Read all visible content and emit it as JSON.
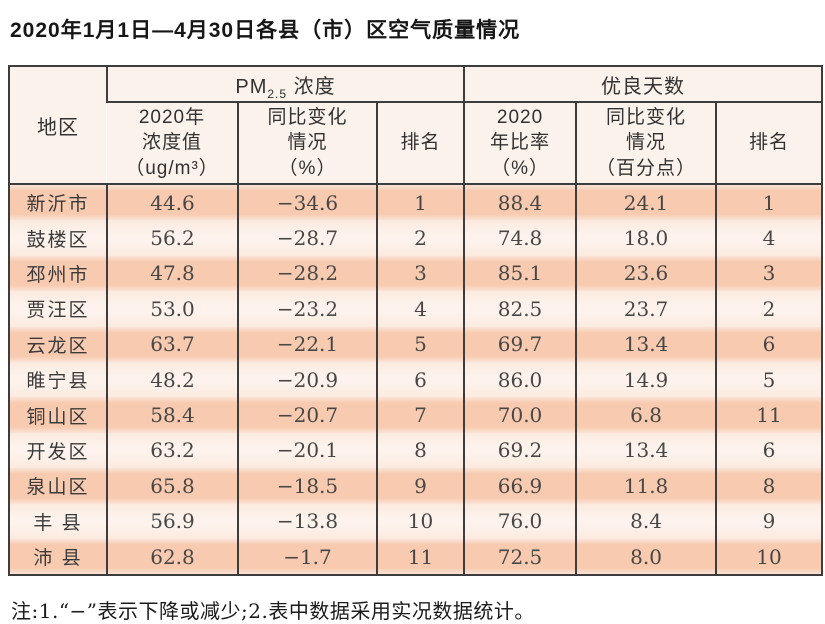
{
  "title": "2020年1月1日—4月30日各县（市）区空气质量情况",
  "table": {
    "corner_header": "地区",
    "group_pm": {
      "prefix": "PM",
      "sub": "2.5",
      "suffix": " 浓度"
    },
    "group_good_days": "优良天数",
    "subheaders": [
      {
        "lines": [
          "2020年",
          "浓度值",
          "（ug/m³）"
        ]
      },
      {
        "lines": [
          "同比变化",
          "情况",
          "（%）"
        ]
      },
      {
        "lines": [
          "排名"
        ]
      },
      {
        "lines": [
          "2020",
          "年比率",
          "（%）"
        ]
      },
      {
        "lines": [
          "同比变化",
          "情况",
          "（百分点）"
        ]
      },
      {
        "lines": [
          "排名"
        ]
      }
    ],
    "rows": [
      {
        "region": "新沂市",
        "pm_value": "44.6",
        "pm_change": "−34.6",
        "pm_rank": "1",
        "good_rate": "88.4",
        "good_change": "24.1",
        "good_rank": "1"
      },
      {
        "region": "鼓楼区",
        "pm_value": "56.2",
        "pm_change": "−28.7",
        "pm_rank": "2",
        "good_rate": "74.8",
        "good_change": "18.0",
        "good_rank": "4"
      },
      {
        "region": "邳州市",
        "pm_value": "47.8",
        "pm_change": "−28.2",
        "pm_rank": "3",
        "good_rate": "85.1",
        "good_change": "23.6",
        "good_rank": "3"
      },
      {
        "region": "贾汪区",
        "pm_value": "53.0",
        "pm_change": "−23.2",
        "pm_rank": "4",
        "good_rate": "82.5",
        "good_change": "23.7",
        "good_rank": "2"
      },
      {
        "region": "云龙区",
        "pm_value": "63.7",
        "pm_change": "−22.1",
        "pm_rank": "5",
        "good_rate": "69.7",
        "good_change": "13.4",
        "good_rank": "6"
      },
      {
        "region": "睢宁县",
        "pm_value": "48.2",
        "pm_change": "−20.9",
        "pm_rank": "6",
        "good_rate": "86.0",
        "good_change": "14.9",
        "good_rank": "5"
      },
      {
        "region": "铜山区",
        "pm_value": "58.4",
        "pm_change": "−20.7",
        "pm_rank": "7",
        "good_rate": "70.0",
        "good_change": "6.8",
        "good_rank": "11"
      },
      {
        "region": "开发区",
        "pm_value": "63.2",
        "pm_change": "−20.1",
        "pm_rank": "8",
        "good_rate": "69.2",
        "good_change": "13.4",
        "good_rank": "6"
      },
      {
        "region": "泉山区",
        "pm_value": "65.8",
        "pm_change": "−18.5",
        "pm_rank": "9",
        "good_rate": "66.9",
        "good_change": "11.8",
        "good_rank": "8"
      },
      {
        "region": "丰 县",
        "pm_value": "56.9",
        "pm_change": "−13.8",
        "pm_rank": "10",
        "good_rate": "76.0",
        "good_change": "8.4",
        "good_rank": "9"
      },
      {
        "region": "沛 县",
        "pm_value": "62.8",
        "pm_change": "−1.7",
        "pm_rank": "11",
        "good_rate": "72.5",
        "good_change": "8.0",
        "good_rank": "10"
      }
    ]
  },
  "footnote": "注:1.“−”表示下降或减少;2.表中数据采用实况数据统计。",
  "colors": {
    "row_odd_band": "#f8caaf",
    "row_even": "#fdf3ec",
    "header_bg": "#fbf2ec",
    "border": "#3d3d3d",
    "text": "#3b3b3b"
  }
}
